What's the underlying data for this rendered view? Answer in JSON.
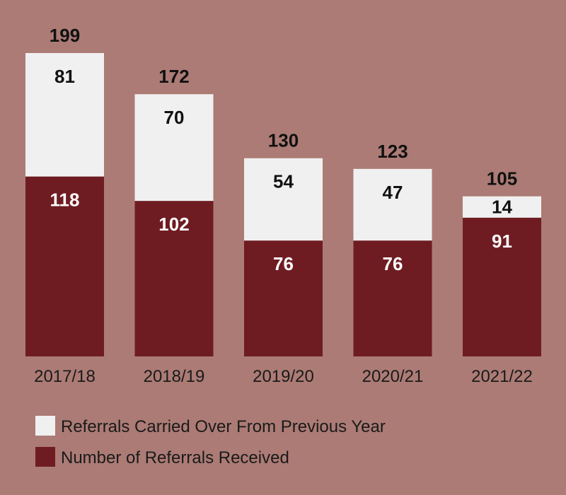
{
  "chart_data": {
    "type": "bar",
    "stacked": true,
    "categories": [
      "2017/18",
      "2018/19",
      "2019/20",
      "2020/21",
      "2021/22"
    ],
    "series": [
      {
        "name": "Number of Referrals Received",
        "values": [
          118,
          102,
          76,
          76,
          91
        ],
        "color": "#6e1c22",
        "label_color": "#ffffff"
      },
      {
        "name": "Referrals Carried Over From Previous Year",
        "values": [
          81,
          70,
          54,
          47,
          14
        ],
        "color": "#f0f0f0",
        "label_color": "#111111"
      }
    ],
    "totals": [
      199,
      172,
      130,
      123,
      105
    ],
    "legend_order": [
      1,
      0
    ],
    "legend_position": "bottom-left",
    "grid": false,
    "ylim": [
      0,
      199
    ],
    "background": "#ac7b75"
  }
}
